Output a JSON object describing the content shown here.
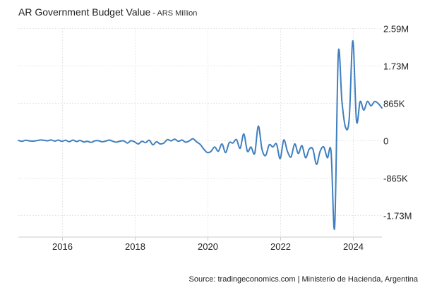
{
  "chart_data": {
    "type": "line",
    "title": "AR Government Budget Value",
    "subtitle": "ARS Million",
    "title_separator": " - ",
    "xlabel": "",
    "ylabel": "",
    "x_range": [
      2014.8,
      2024.8
    ],
    "ylim": [
      -2230000,
      2590000
    ],
    "y_ticks": [
      2590000,
      1730000,
      865000,
      0,
      -865000,
      -1730000
    ],
    "y_tick_labels": [
      "2.59M",
      "1.73M",
      "865K",
      "0",
      "-865K",
      "-1.73M"
    ],
    "x_ticks": [
      2016,
      2018,
      2020,
      2022,
      2024
    ],
    "x_tick_labels": [
      "2016",
      "2018",
      "2020",
      "2022",
      "2024"
    ],
    "grid": true,
    "line_color": "#3f7fbf",
    "series": [
      {
        "name": "AR Government Budget Value",
        "x": [
          2014.8,
          2014.9,
          2015.0,
          2015.1,
          2015.2,
          2015.3,
          2015.4,
          2015.5,
          2015.6,
          2015.7,
          2015.8,
          2015.9,
          2016.0,
          2016.1,
          2016.2,
          2016.3,
          2016.4,
          2016.5,
          2016.6,
          2016.7,
          2016.8,
          2016.9,
          2017.0,
          2017.1,
          2017.2,
          2017.3,
          2017.4,
          2017.5,
          2017.6,
          2017.7,
          2017.8,
          2017.9,
          2018.0,
          2018.1,
          2018.2,
          2018.3,
          2018.4,
          2018.5,
          2018.6,
          2018.7,
          2018.8,
          2018.9,
          2019.0,
          2019.1,
          2019.2,
          2019.3,
          2019.4,
          2019.5,
          2019.6,
          2019.7,
          2019.8,
          2019.9,
          2020.0,
          2020.1,
          2020.2,
          2020.3,
          2020.4,
          2020.5,
          2020.6,
          2020.7,
          2020.8,
          2020.9,
          2021.0,
          2021.1,
          2021.2,
          2021.3,
          2021.4,
          2021.5,
          2021.6,
          2021.7,
          2021.8,
          2021.9,
          2022.0,
          2022.1,
          2022.2,
          2022.3,
          2022.4,
          2022.5,
          2022.6,
          2022.7,
          2022.8,
          2022.9,
          2023.0,
          2023.1,
          2023.2,
          2023.3,
          2023.4,
          2023.5,
          2023.6,
          2023.7,
          2023.8,
          2023.9,
          2024.0,
          2024.1,
          2024.2,
          2024.3,
          2024.4,
          2024.5,
          2024.6,
          2024.7,
          2024.8
        ],
        "values": [
          0,
          -20000,
          5000,
          -10000,
          -15000,
          -5000,
          10000,
          5000,
          -8000,
          12000,
          -15000,
          8000,
          -20000,
          5000,
          -30000,
          10000,
          -25000,
          0,
          -35000,
          -20000,
          -45000,
          -10000,
          -5000,
          -30000,
          -15000,
          10000,
          -20000,
          -40000,
          -15000,
          -10000,
          -60000,
          -5000,
          -35000,
          -80000,
          -20000,
          -50000,
          5000,
          -100000,
          -30000,
          -80000,
          -60000,
          20000,
          -10000,
          30000,
          -20000,
          10000,
          -40000,
          -10000,
          40000,
          -30000,
          -90000,
          -200000,
          -280000,
          -250000,
          -150000,
          -250000,
          -80000,
          -280000,
          -50000,
          -60000,
          20000,
          -180000,
          150000,
          -250000,
          -150000,
          -300000,
          330000,
          -200000,
          -350000,
          -100000,
          -150000,
          -80000,
          -420000,
          10000,
          -250000,
          -380000,
          -80000,
          -300000,
          -120000,
          -400000,
          -200000,
          -200000,
          -550000,
          -250000,
          -150000,
          -400000,
          -250000,
          -2000000,
          2000000,
          900000,
          300000,
          500000,
          2300000,
          450000,
          900000,
          700000,
          900000,
          800000,
          900000,
          850000,
          750000
        ]
      }
    ]
  },
  "source": "Source: tradingeconomics.com | Ministerio de Hacienda, Argentina"
}
